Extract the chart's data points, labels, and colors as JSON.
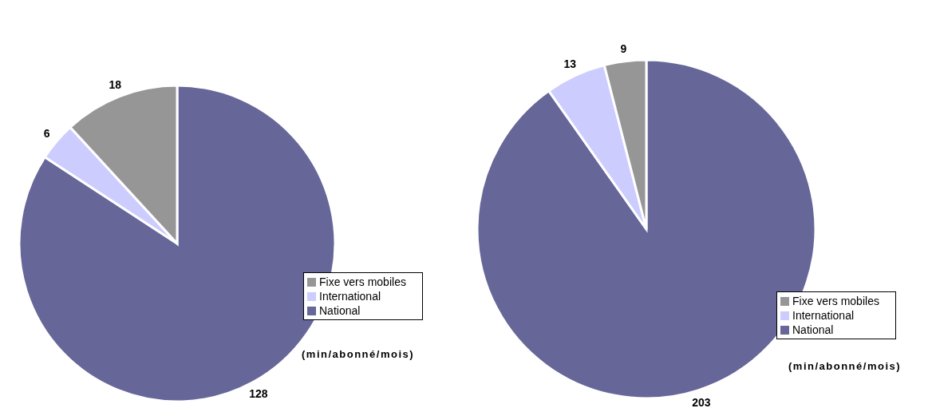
{
  "chart_data": [
    {
      "type": "pie",
      "categories": [
        "National",
        "International",
        "Fixe vers mobiles"
      ],
      "values": [
        128,
        6,
        18
      ],
      "colors": [
        "#666699",
        "#ccccff",
        "#969696"
      ],
      "data_labels": true,
      "legend": "bottom right",
      "annotations": [
        "(min/abonné/mois)"
      ]
    },
    {
      "type": "pie",
      "categories": [
        "National",
        "International",
        "Fixe vers mobiles"
      ],
      "values": [
        203,
        13,
        9
      ],
      "colors": [
        "#666699",
        "#ccccff",
        "#969696"
      ],
      "data_labels": true,
      "legend": "bottom right",
      "annotations": [
        "(min/abonné/mois)"
      ]
    }
  ]
}
